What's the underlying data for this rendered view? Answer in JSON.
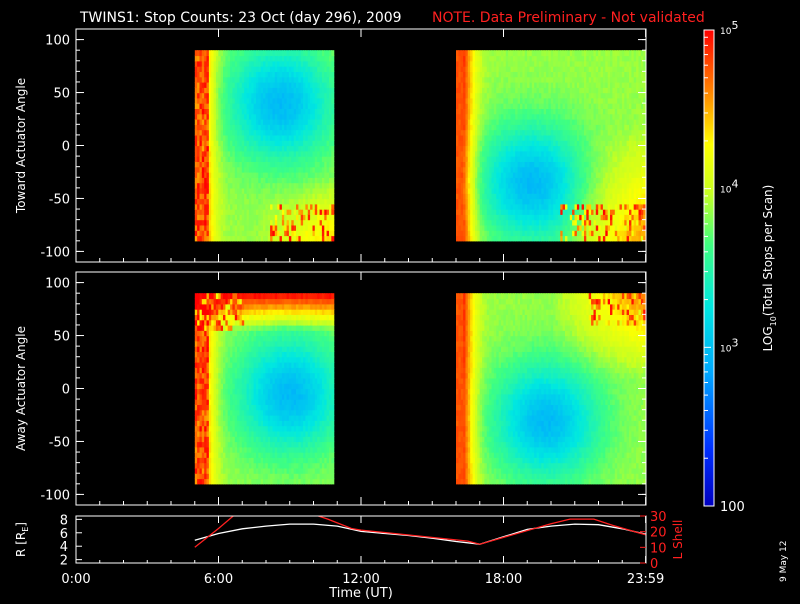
{
  "header": {
    "title": "TWINS1: Stop Counts: 23 Oct (day 296), 2009",
    "note": "NOTE. Data Preliminary - Not validated",
    "date_stamp": "9 May 12"
  },
  "colors": {
    "background": "#000000",
    "axes": "#ffffff",
    "note": "#ff2020",
    "lshell": "#ff2020",
    "radius": "#ffffff",
    "panel_fill": "#000000"
  },
  "colorbar": {
    "label_prefix": "LOG",
    "label_sub": "10",
    "label_suffix": "(Total Stops per Scan)",
    "ticks": [
      {
        "value": 100,
        "label": "100",
        "sup": ""
      },
      {
        "value": 1000,
        "label": "10",
        "sup": "3"
      },
      {
        "value": 10000,
        "label": "10",
        "sup": "4"
      },
      {
        "value": 100000,
        "label": "10",
        "sup": "5"
      }
    ],
    "range": [
      100,
      100000
    ],
    "scale": "log",
    "colormap": "rainbow"
  },
  "chart_data": [
    {
      "type": "heatmap",
      "title": "",
      "ylabel": "Toward Actuator Angle",
      "ylim": [
        -110,
        110
      ],
      "yticks": [
        "100",
        "50",
        "0",
        "-50",
        "-100"
      ],
      "ytick_values": [
        100,
        50,
        0,
        -50,
        -100
      ],
      "xlim": [
        0,
        24
      ],
      "xticks": [
        0,
        6,
        12,
        18,
        23.983
      ],
      "x_unit": "hours UT",
      "data_angle_range": [
        -90,
        90
      ],
      "segments": [
        {
          "start": 5.0,
          "end": 10.85,
          "blue_center_hour": 8.6,
          "blue_center_angle": 40,
          "features": "orange edge 5.0-6.6 h, red striping near 5.2-5.6 h, blue core 7.5-10.5 h, noisy red/yellow speckle below -50 deg after 8.5 h"
        },
        {
          "start": 16.0,
          "end": 23.983,
          "blue_center_hour": 19.2,
          "blue_center_angle": -35,
          "features": "red edge at 16.1 h, blue band 16.5-21 h, yellow/orange region after 21.5 h, speckle in lower right"
        }
      ]
    },
    {
      "type": "heatmap",
      "title": "",
      "ylabel": "Away Actuator Angle",
      "ylim": [
        -110,
        110
      ],
      "yticks": [
        "100",
        "50",
        "0",
        "-50",
        "-100"
      ],
      "ytick_values": [
        100,
        50,
        0,
        -50,
        -100
      ],
      "xlim": [
        0,
        24
      ],
      "xticks": [
        0,
        6,
        12,
        18,
        23.983
      ],
      "x_unit": "hours UT",
      "data_angle_range": [
        -90,
        90
      ],
      "segments": [
        {
          "start": 5.0,
          "end": 10.85,
          "blue_center_hour": 9.0,
          "blue_center_angle": -5,
          "features": "orange/yellow edge 5.0-7.2 h, red top band above 60 deg, blue core 7.8-10.5 h"
        },
        {
          "start": 16.0,
          "end": 23.983,
          "blue_center_hour": 19.8,
          "blue_center_angle": -30,
          "features": "blue band 16.5-22 h, orange/red region upper right after 21 h, speckle upper right"
        }
      ]
    },
    {
      "type": "line",
      "title": "",
      "ylabel": "R [R",
      "ylabel_sub": "E",
      "ylabel_end": "]",
      "y2label": "L Shell",
      "xlabel": "Time (UT)",
      "xlim": [
        0,
        24
      ],
      "xticks": [
        "0:00",
        "6:00",
        "12:00",
        "18:00",
        "23:59"
      ],
      "xtick_values": [
        0,
        6,
        12,
        18,
        23.983
      ],
      "ylim": [
        1.5,
        8.5
      ],
      "yticks": [
        "8",
        "6",
        "4",
        "2"
      ],
      "ytick_values": [
        8,
        6,
        4,
        2
      ],
      "y2lim": [
        0,
        30
      ],
      "y2ticks": [
        "30",
        "20",
        "10",
        "0"
      ],
      "y2tick_values": [
        30,
        20,
        10,
        0
      ],
      "series": [
        {
          "axis": "left",
          "x": [
            5.0,
            6.0,
            7.0,
            8.0,
            9.0,
            10.0,
            11.0,
            12.0,
            13.0,
            14.0,
            15.0,
            16.0,
            17.0,
            18.0,
            19.0,
            20.0,
            21.0,
            22.0,
            23.0,
            23.983
          ],
          "y": [
            4.9,
            5.9,
            6.6,
            7.0,
            7.3,
            7.3,
            7.0,
            6.2,
            5.9,
            5.6,
            5.2,
            4.7,
            4.3,
            5.4,
            6.5,
            7.0,
            7.3,
            7.2,
            6.6,
            5.8
          ]
        },
        {
          "axis": "right",
          "x": [
            5.0,
            6.0,
            6.7,
            10.0,
            10.6,
            11.6,
            12.0,
            16.5,
            17.0,
            20.0,
            20.8,
            21.8,
            22.6,
            23.983
          ],
          "y": [
            10,
            22,
            31,
            31,
            28,
            22,
            21,
            14,
            12,
            25,
            28,
            28,
            24,
            18
          ]
        }
      ]
    }
  ]
}
